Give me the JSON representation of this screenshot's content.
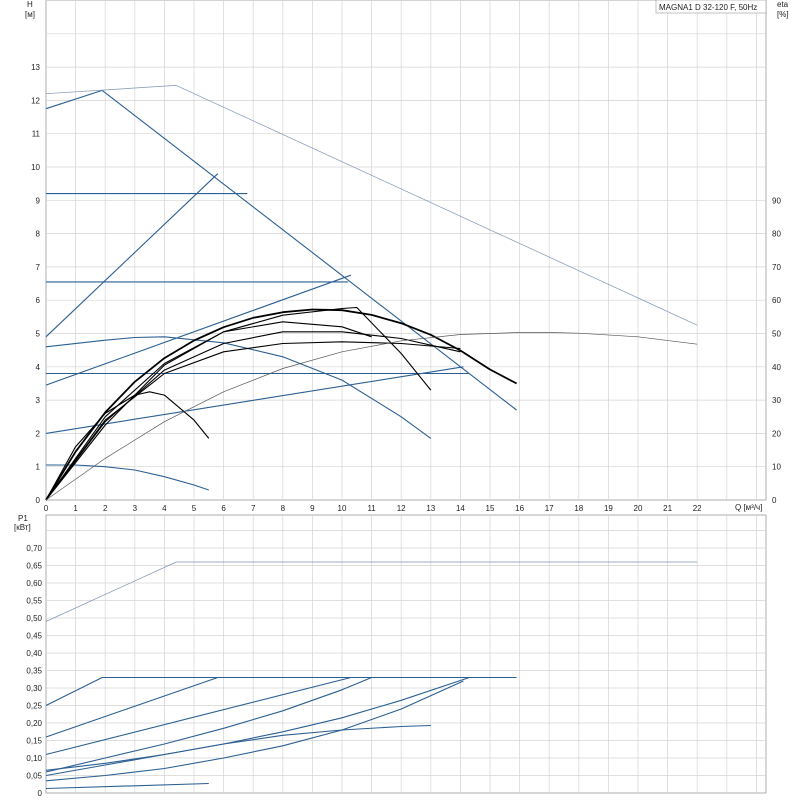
{
  "chart_data": [
    {
      "type": "line",
      "title": "MAGNA1 D 32-120 F, 50Hz",
      "xlabel": "Q [м³/ч]",
      "ylabel": "H [м]",
      "ylabel_right": "eta [%]",
      "xlim": [
        0,
        24
      ],
      "ylim": [
        0,
        15
      ],
      "ylim_right": [
        0,
        150
      ],
      "x_ticks": [
        "0",
        "1",
        "2",
        "3",
        "4",
        "5",
        "6",
        "7",
        "8",
        "9",
        "10",
        "11",
        "12",
        "13",
        "14",
        "15",
        "16",
        "17",
        "18",
        "19",
        "20",
        "21",
        "22"
      ],
      "y_ticks": [
        "0",
        "1",
        "2",
        "3",
        "4",
        "5",
        "6",
        "7",
        "8",
        "9",
        "10",
        "11",
        "12",
        "13"
      ],
      "y_ticks_right": [
        "0",
        "10",
        "20",
        "30",
        "40",
        "50",
        "60",
        "70",
        "80",
        "90"
      ],
      "grid": true,
      "series": [
        {
          "group": "H",
          "color": "#2c5f93",
          "x": [
            0,
            1.9,
            15.9
          ],
          "y": [
            11.75,
            12.3,
            2.7
          ]
        },
        {
          "group": "H",
          "color": "#2c5f93",
          "x": [
            0,
            6.8
          ],
          "y": [
            9.2,
            9.2
          ]
        },
        {
          "group": "H",
          "color": "#2c5f93",
          "x": [
            0,
            10.2
          ],
          "y": [
            6.55,
            6.55
          ]
        },
        {
          "group": "H",
          "color": "#2c5f93",
          "x": [
            0,
            14.3
          ],
          "y": [
            3.8,
            3.8
          ]
        },
        {
          "group": "H",
          "color": "#2c5f93",
          "x": [
            0,
            5.8
          ],
          "y": [
            4.9,
            9.8
          ]
        },
        {
          "group": "H",
          "color": "#2c5f93",
          "x": [
            0,
            10.3
          ],
          "y": [
            3.45,
            6.75
          ]
        },
        {
          "group": "H",
          "color": "#2c5f93",
          "x": [
            0,
            14.1
          ],
          "y": [
            2.0,
            4.0
          ]
        },
        {
          "group": "H",
          "color": "#2c5f93",
          "x": [
            0,
            2.0,
            3.0,
            4.0,
            6.0,
            8.0,
            10.0,
            12.0,
            13.0
          ],
          "y": [
            4.6,
            4.8,
            4.88,
            4.9,
            4.72,
            4.3,
            3.6,
            2.5,
            1.85
          ]
        },
        {
          "group": "H",
          "color": "#2c5f93",
          "x": [
            0,
            1.0,
            2.0,
            3.0,
            4.0,
            5.0,
            5.5
          ],
          "y": [
            1.05,
            1.05,
            1.0,
            0.9,
            0.7,
            0.45,
            0.3
          ]
        },
        {
          "group": "H",
          "color": "#7f95b3",
          "x": [
            0,
            4.4,
            22.0
          ],
          "y": [
            12.2,
            12.45,
            5.25
          ]
        },
        {
          "group": "eta",
          "color": "#000000",
          "x": [
            0,
            1.0,
            2.0,
            3.0,
            4.0,
            5.0,
            6.0,
            7.0,
            8.0,
            9.0,
            10.0,
            11.0,
            12.0,
            13.0,
            14.0,
            15.0,
            15.9
          ],
          "y": [
            0,
            14.5,
            26.3,
            35.5,
            42.6,
            47.9,
            51.9,
            54.7,
            56.4,
            57.2,
            57.0,
            55.6,
            53.1,
            49.6,
            44.9,
            39.2,
            35.0
          ]
        },
        {
          "group": "eta",
          "color": "#000000",
          "x": [
            0,
            2.0,
            4.0,
            6.0,
            8.0,
            10.0,
            10.5,
            12.0,
            13.0
          ],
          "y": [
            0,
            25.0,
            41.0,
            50.5,
            55.5,
            57.5,
            57.8,
            44.0,
            33.0
          ]
        },
        {
          "group": "eta",
          "color": "#000000",
          "x": [
            0,
            2.0,
            4.0,
            6.0,
            8.0,
            10.0,
            12.0,
            14.0
          ],
          "y": [
            0,
            24.0,
            38.0,
            44.5,
            47.0,
            47.5,
            47.0,
            45.5
          ]
        },
        {
          "group": "eta",
          "color": "#000000",
          "x": [
            0,
            2.0,
            4.0,
            6.0,
            8.0,
            10.0,
            12.0,
            14.0
          ],
          "y": [
            0,
            23.5,
            39.0,
            47.0,
            50.5,
            50.5,
            48.5,
            44.5
          ]
        },
        {
          "group": "eta",
          "color": "#000000",
          "x": [
            0,
            1.0,
            2.0,
            3.0,
            3.5,
            4.0,
            5.0,
            5.5
          ],
          "y": [
            0,
            16.0,
            26.0,
            31.5,
            32.5,
            31.5,
            24.0,
            18.5
          ]
        },
        {
          "group": "eta",
          "color": "#000000",
          "x": [
            0,
            2.0,
            4.0,
            6.0,
            8.0,
            10.0,
            11.0
          ],
          "y": [
            0,
            22.5,
            40.5,
            50.5,
            53.5,
            52.0,
            49.0
          ]
        },
        {
          "group": "eta",
          "color": "#555555",
          "x": [
            0,
            2.0,
            4.0,
            6.0,
            8.0,
            10.0,
            12.0,
            14.0,
            16.0,
            17.0,
            18.0,
            20.0,
            22.0
          ],
          "y": [
            0,
            12.5,
            23.5,
            32.5,
            39.5,
            44.5,
            47.8,
            49.7,
            50.3,
            50.3,
            50.1,
            49.0,
            46.8
          ]
        },
        {
          "group": "P1",
          "color": "#2c5f93",
          "x": [
            0,
            1.9,
            15.9
          ],
          "y": [
            0.25,
            0.33,
            0.33
          ]
        },
        {
          "group": "P1",
          "color": "#2c5f93",
          "x": [
            0,
            5.8,
            6.8
          ],
          "y": [
            0.16,
            0.33,
            0.33
          ]
        },
        {
          "group": "P1",
          "color": "#2c5f93",
          "x": [
            0,
            10.3
          ],
          "y": [
            0.11,
            0.33
          ]
        },
        {
          "group": "P1",
          "color": "#2c5f93",
          "x": [
            0,
            2.0,
            4.0,
            6.0,
            8.0,
            10.0,
            12.0,
            14.3
          ],
          "y": [
            0.065,
            0.085,
            0.11,
            0.14,
            0.175,
            0.215,
            0.265,
            0.33
          ]
        },
        {
          "group": "P1",
          "color": "#2c5f93",
          "x": [
            0,
            2.0,
            4.0,
            6.0,
            8.0,
            10.0,
            12.0,
            14.1
          ],
          "y": [
            0.035,
            0.05,
            0.07,
            0.1,
            0.135,
            0.18,
            0.24,
            0.32
          ]
        },
        {
          "group": "P1",
          "color": "#2c5f93",
          "x": [
            0,
            2.0,
            4.0,
            6.0,
            8.0,
            10.0,
            11.0
          ],
          "y": [
            0.06,
            0.1,
            0.14,
            0.185,
            0.235,
            0.295,
            0.33
          ]
        },
        {
          "group": "P1",
          "color": "#2c5f93",
          "x": [
            0,
            2.0,
            4.0,
            6.0,
            8.0,
            10.0,
            12.0,
            13.0
          ],
          "y": [
            0.05,
            0.08,
            0.11,
            0.14,
            0.165,
            0.18,
            0.19,
            0.193
          ]
        },
        {
          "group": "P1",
          "color": "#2c5f93",
          "x": [
            0,
            5.5
          ],
          "y": [
            0.013,
            0.027
          ]
        },
        {
          "group": "P1",
          "color": "#7f95b3",
          "x": [
            0,
            4.4,
            22.0
          ],
          "y": [
            0.49,
            0.66,
            0.66
          ]
        }
      ]
    },
    {
      "type": "line",
      "xlabel": "",
      "ylabel": "P1 [кВт]",
      "xlim": [
        0,
        24
      ],
      "ylim": [
        0,
        0.75
      ],
      "y_ticks": [
        "0",
        "0,05",
        "0,10",
        "0,15",
        "0,20",
        "0,25",
        "0,30",
        "0,35",
        "0,40",
        "0,45",
        "0,50",
        "0,55",
        "0,60",
        "0,65",
        "0,70"
      ],
      "grid": true
    }
  ],
  "top_chart": {
    "y_axis_title_1": "H",
    "y_axis_title_2": "[м]",
    "right_axis_title_1": "eta",
    "right_axis_title_2": "[%]",
    "x_axis_title": "Q [м³/ч]",
    "model_label": "MAGNA1 D 32-120 F, 50Hz"
  },
  "bottom_chart": {
    "y_axis_title_1": "P1",
    "y_axis_title_2": "[кВт]"
  }
}
